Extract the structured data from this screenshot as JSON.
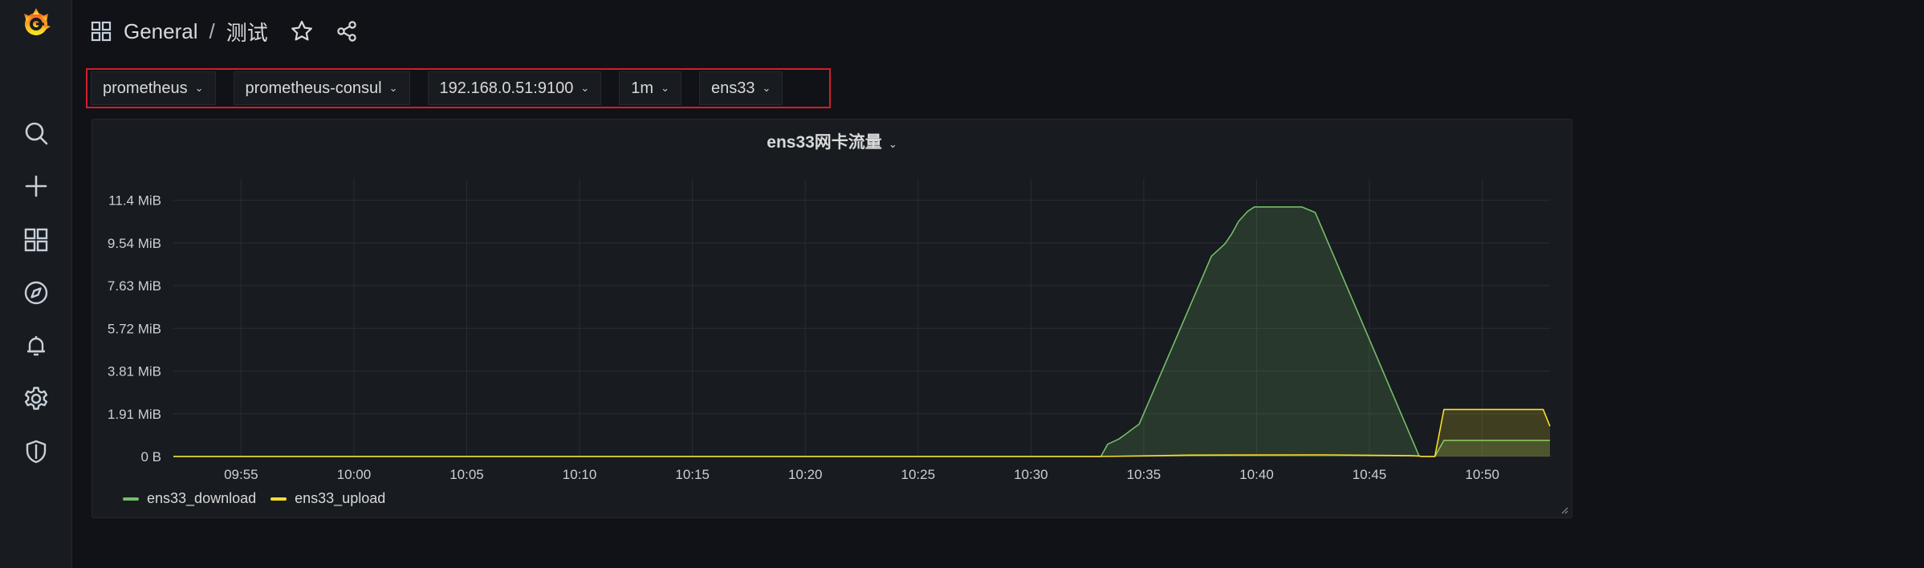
{
  "sidebar": {
    "items": [
      {
        "name": "search-icon"
      },
      {
        "name": "plus-icon"
      },
      {
        "name": "dashboards-icon"
      },
      {
        "name": "compass-icon"
      },
      {
        "name": "bell-icon"
      },
      {
        "name": "gear-icon"
      },
      {
        "name": "shield-icon"
      }
    ]
  },
  "header": {
    "folder": "General",
    "separator": "/",
    "title": "测试"
  },
  "variables": [
    {
      "value": "prometheus"
    },
    {
      "value": "prometheus-consul"
    },
    {
      "value": "192.168.0.51:9100"
    },
    {
      "value": "1m"
    },
    {
      "value": "ens33"
    }
  ],
  "panel": {
    "title": "ens33网卡流量"
  },
  "colors": {
    "download": "#73bf69",
    "upload": "#fade2a",
    "variable_highlight": "#d11e2d"
  },
  "chart_data": {
    "type": "area",
    "y_ticks": [
      "0 B",
      "1.91 MiB",
      "3.81 MiB",
      "5.72 MiB",
      "7.63 MiB",
      "9.54 MiB",
      "11.4 MiB"
    ],
    "x_ticks": [
      "09:55",
      "10:00",
      "10:05",
      "10:10",
      "10:15",
      "10:20",
      "10:25",
      "10:30",
      "10:35",
      "10:40",
      "10:45",
      "10:50"
    ],
    "x_range_min": [
      592,
      653
    ],
    "y_range_mib": [
      0,
      12.4
    ],
    "grid": true,
    "legend_placement": "bottom-left",
    "series": [
      {
        "name": "ens33_download",
        "x_min": [
          592,
          633.1,
          633.4,
          633.9,
          634.2,
          634.8,
          638.0,
          638.6,
          638.9,
          639.2,
          639.6,
          639.9,
          642.0,
          642.6,
          647.2,
          647.3,
          647.9,
          648.3,
          653
        ],
        "y_mib": [
          0,
          0,
          0.55,
          0.78,
          1.0,
          1.45,
          8.95,
          9.5,
          9.95,
          10.5,
          10.95,
          11.15,
          11.15,
          10.9,
          0.03,
          0,
          0,
          0.72,
          0.72
        ]
      },
      {
        "name": "ens33_upload",
        "x_min": [
          592,
          633.0,
          635.2,
          637.0,
          643.0,
          646.8,
          647.2,
          647.3,
          647.9,
          648.3,
          652.7,
          653
        ],
        "y_mib": [
          0,
          0,
          0.03,
          0.06,
          0.07,
          0.04,
          0.02,
          0,
          0,
          2.1,
          2.1,
          1.35
        ]
      }
    ]
  }
}
